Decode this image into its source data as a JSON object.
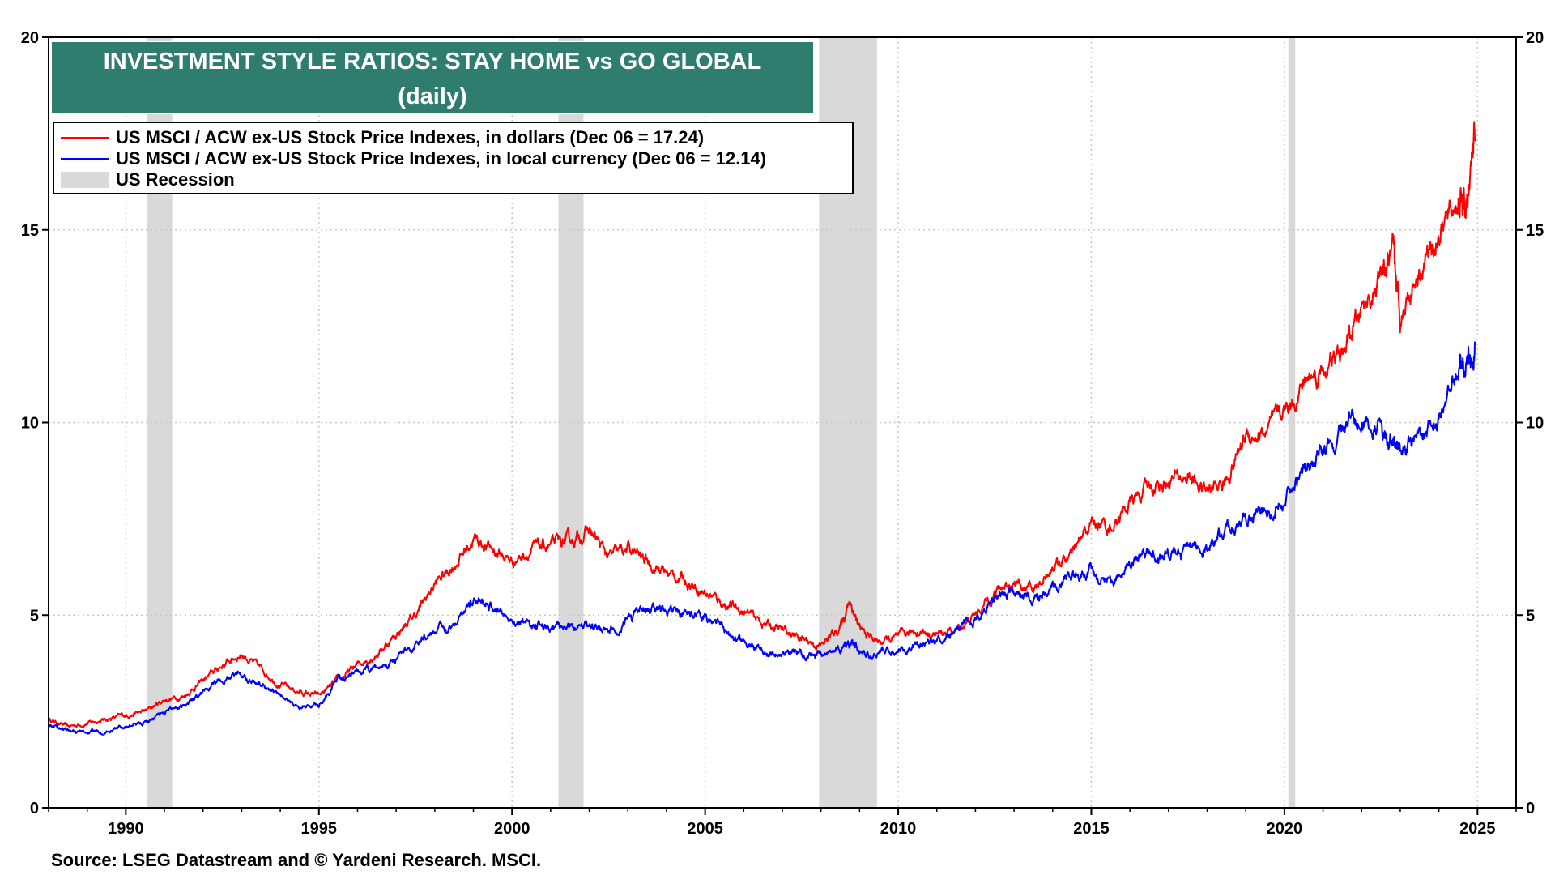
{
  "title_line1": "INVESTMENT STYLE RATIOS: STAY HOME vs GO GLOBAL",
  "title_line2": "(daily)",
  "source": "Source: LSEG Datastream and © Yardeni Research. MSCI.",
  "colors": {
    "title_bg": "#2f7d6e",
    "dollars": "#ff0000",
    "local": "#0000ff",
    "recession": "#d9d9d9"
  },
  "chart_data": {
    "type": "line",
    "title": "INVESTMENT STYLE RATIOS: STAY HOME vs GO GLOBAL (daily)",
    "xlim": [
      1988.0,
      2026.0
    ],
    "ylim": [
      0,
      20
    ],
    "x_ticks": [
      "1990",
      "1995",
      "2000",
      "2005",
      "2010",
      "2015",
      "2020",
      "2025"
    ],
    "x_tick_values": [
      1990,
      1995,
      2000,
      2005,
      2010,
      2015,
      2020,
      2025
    ],
    "y_ticks": [
      "0",
      "5",
      "10",
      "15",
      "20"
    ],
    "y_tick_values": [
      0,
      5,
      10,
      15,
      20
    ],
    "grid": true,
    "legend_position": "top-left",
    "recessions": [
      {
        "label": "US Recession",
        "start": 1990.55,
        "end": 1991.2
      },
      {
        "label": "US Recession",
        "start": 2001.2,
        "end": 2001.85
      },
      {
        "label": "US Recession",
        "start": 2007.95,
        "end": 2009.45
      },
      {
        "label": "US Recession",
        "start": 2020.1,
        "end": 2020.28
      }
    ],
    "recession_legend": "US Recession",
    "series": [
      {
        "name": "US MSCI / ACW ex-US Stock Price Indexes, in dollars (Dec 06 = 17.24)",
        "color": "#ff0000",
        "x": [
          1988.0,
          1988.5,
          1989.0,
          1989.5,
          1990.0,
          1990.5,
          1991.0,
          1991.5,
          1992.0,
          1992.5,
          1993.0,
          1993.5,
          1994.0,
          1994.5,
          1995.0,
          1995.5,
          1996.0,
          1996.5,
          1997.0,
          1997.5,
          1998.0,
          1998.5,
          1999.0,
          1999.5,
          2000.0,
          2000.5,
          2001.0,
          2001.5,
          2002.0,
          2002.5,
          2003.0,
          2003.5,
          2004.0,
          2004.5,
          2005.0,
          2005.5,
          2006.0,
          2006.5,
          2007.0,
          2007.5,
          2008.0,
          2008.5,
          2008.75,
          2009.0,
          2009.5,
          2010.0,
          2010.5,
          2011.0,
          2011.5,
          2012.0,
          2012.5,
          2013.0,
          2013.5,
          2014.0,
          2014.5,
          2015.0,
          2015.5,
          2016.0,
          2016.5,
          2017.0,
          2017.5,
          2018.0,
          2018.5,
          2019.0,
          2019.5,
          2020.0,
          2020.5,
          2021.0,
          2021.5,
          2022.0,
          2022.5,
          2022.8,
          2023.0,
          2023.5,
          2024.0,
          2024.5,
          2024.7,
          2024.93
        ],
        "values": [
          2.3,
          2.1,
          2.2,
          2.3,
          2.4,
          2.5,
          2.8,
          2.9,
          3.3,
          3.7,
          4.0,
          3.6,
          3.2,
          3.0,
          2.9,
          3.3,
          3.7,
          4.0,
          4.5,
          5.0,
          5.8,
          6.3,
          7.0,
          6.7,
          6.4,
          6.7,
          6.8,
          6.9,
          7.2,
          6.5,
          6.7,
          6.4,
          6.1,
          5.9,
          5.6,
          5.3,
          5.1,
          4.8,
          4.6,
          4.4,
          4.2,
          4.7,
          5.4,
          4.6,
          4.3,
          4.4,
          4.6,
          4.5,
          4.6,
          5.0,
          5.6,
          5.9,
          5.6,
          6.3,
          6.5,
          7.4,
          7.3,
          7.9,
          8.3,
          8.5,
          8.6,
          8.2,
          8.5,
          9.7,
          9.7,
          10.3,
          11.0,
          11.4,
          11.7,
          12.9,
          13.7,
          14.3,
          12.8,
          14.1,
          14.9,
          15.7,
          15.5,
          17.3
        ]
      },
      {
        "name": "US MSCI / ACW ex-US Stock Price Indexes, in local currency (Dec 06 = 12.14)",
        "color": "#0000ff",
        "x": [
          1988.0,
          1988.5,
          1989.0,
          1989.5,
          1990.0,
          1990.5,
          1991.0,
          1991.5,
          1992.0,
          1992.5,
          1993.0,
          1993.5,
          1994.0,
          1994.5,
          1995.0,
          1995.5,
          1996.0,
          1996.5,
          1997.0,
          1997.5,
          1998.0,
          1998.5,
          1999.0,
          1999.5,
          2000.0,
          2000.5,
          2001.0,
          2001.5,
          2002.0,
          2002.5,
          2003.0,
          2003.5,
          2004.0,
          2004.5,
          2005.0,
          2005.5,
          2006.0,
          2006.5,
          2007.0,
          2007.5,
          2008.0,
          2008.5,
          2008.75,
          2009.0,
          2009.5,
          2010.0,
          2010.5,
          2011.0,
          2011.5,
          2012.0,
          2012.5,
          2013.0,
          2013.5,
          2014.0,
          2014.5,
          2015.0,
          2015.5,
          2016.0,
          2016.5,
          2017.0,
          2017.5,
          2018.0,
          2018.5,
          2019.0,
          2019.5,
          2020.0,
          2020.5,
          2021.0,
          2021.5,
          2022.0,
          2022.5,
          2022.8,
          2023.0,
          2023.5,
          2024.0,
          2024.5,
          2024.7,
          2024.93
        ],
        "values": [
          2.2,
          2.0,
          1.95,
          2.0,
          2.1,
          2.2,
          2.5,
          2.7,
          3.0,
          3.3,
          3.5,
          3.2,
          2.9,
          2.6,
          2.7,
          3.3,
          3.5,
          3.6,
          3.9,
          4.2,
          4.6,
          4.8,
          5.4,
          5.2,
          4.9,
          4.7,
          4.6,
          4.7,
          4.8,
          4.5,
          4.9,
          5.2,
          5.1,
          5.0,
          5.0,
          4.6,
          4.3,
          4.1,
          4.0,
          4.0,
          4.0,
          4.1,
          4.3,
          4.0,
          4.0,
          4.1,
          4.2,
          4.3,
          4.6,
          4.9,
          5.4,
          5.6,
          5.4,
          5.7,
          6.0,
          6.2,
          5.8,
          6.3,
          6.7,
          6.6,
          6.7,
          6.7,
          7.2,
          7.5,
          7.7,
          8.0,
          8.8,
          9.4,
          9.7,
          10.3,
          9.8,
          9.5,
          9.3,
          9.6,
          10.2,
          11.2,
          11.5,
          12.1
        ]
      }
    ]
  },
  "legend": {
    "dollars": "US MSCI / ACW ex-US Stock Price Indexes, in dollars (Dec 06 = 17.24)",
    "local": "US MSCI / ACW ex-US Stock Price Indexes, in local currency (Dec 06 = 12.14)",
    "recession": "US Recession"
  }
}
